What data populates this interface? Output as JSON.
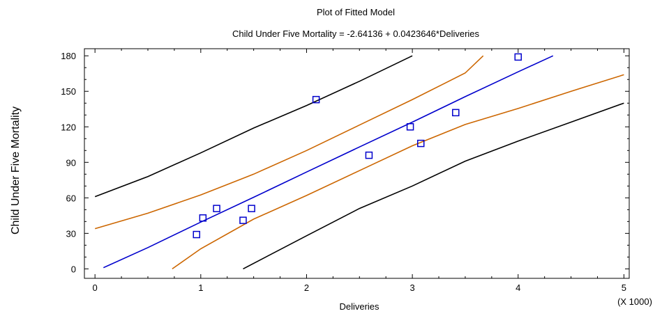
{
  "chart_data": {
    "type": "scatter",
    "title": "Plot of Fitted Model",
    "subtitle": "Child Under Five Mortality = -2.64136 + 0.0423646*Deliveries",
    "xlabel": "Deliveries",
    "ylabel": "Child Under Five Mortality",
    "x_multiplier_label": "(X 1000)",
    "xlim": [
      -0.1,
      5.05
    ],
    "ylim": [
      -8,
      186
    ],
    "xticks": [
      0,
      1,
      2,
      3,
      4,
      5
    ],
    "yticks": [
      0,
      30,
      60,
      90,
      120,
      150,
      180
    ],
    "grid": false,
    "legend": "none",
    "colors": {
      "points": "#0000cc",
      "fit": "#0000cc",
      "confidence": "#cc6600",
      "prediction": "#000000"
    },
    "points": {
      "x": [
        0.96,
        1.02,
        1.15,
        1.4,
        1.48,
        2.09,
        2.59,
        2.98,
        3.08,
        3.41,
        4.0
      ],
      "y": [
        29,
        43,
        51,
        41,
        51,
        143,
        96,
        120,
        106,
        132,
        179
      ]
    },
    "series": [
      {
        "role": "fit",
        "x": [
          0.08,
          0.5,
          1.0,
          1.5,
          2.0,
          2.5,
          3.0,
          3.5,
          4.0,
          4.33
        ],
        "y": [
          1,
          18,
          39.5,
          60.5,
          81.8,
          103,
          124,
          145.5,
          166.5,
          180
        ]
      },
      {
        "role": "confidence-upper",
        "x": [
          0.0,
          0.5,
          1.0,
          1.5,
          2.0,
          2.5,
          3.0,
          3.5,
          3.67
        ],
        "y": [
          34,
          47,
          62.5,
          80,
          100,
          121.5,
          143,
          165.5,
          180
        ]
      },
      {
        "role": "confidence-lower",
        "x": [
          0.73,
          1.0,
          1.5,
          2.0,
          2.5,
          3.0,
          3.5,
          4.0,
          4.5,
          5.0
        ],
        "y": [
          0,
          17,
          42,
          62,
          83,
          104,
          122,
          135.5,
          150,
          164
        ]
      },
      {
        "role": "prediction-upper",
        "x": [
          0.0,
          0.5,
          1.0,
          1.5,
          2.0,
          2.5,
          3.0
        ],
        "y": [
          61,
          78,
          98,
          119,
          138,
          158.5,
          180
        ]
      },
      {
        "role": "prediction-lower",
        "x": [
          1.4,
          2.0,
          2.5,
          3.0,
          3.5,
          4.0,
          4.5,
          5.0
        ],
        "y": [
          0,
          28,
          51,
          70,
          91,
          108,
          124,
          140
        ]
      }
    ]
  }
}
